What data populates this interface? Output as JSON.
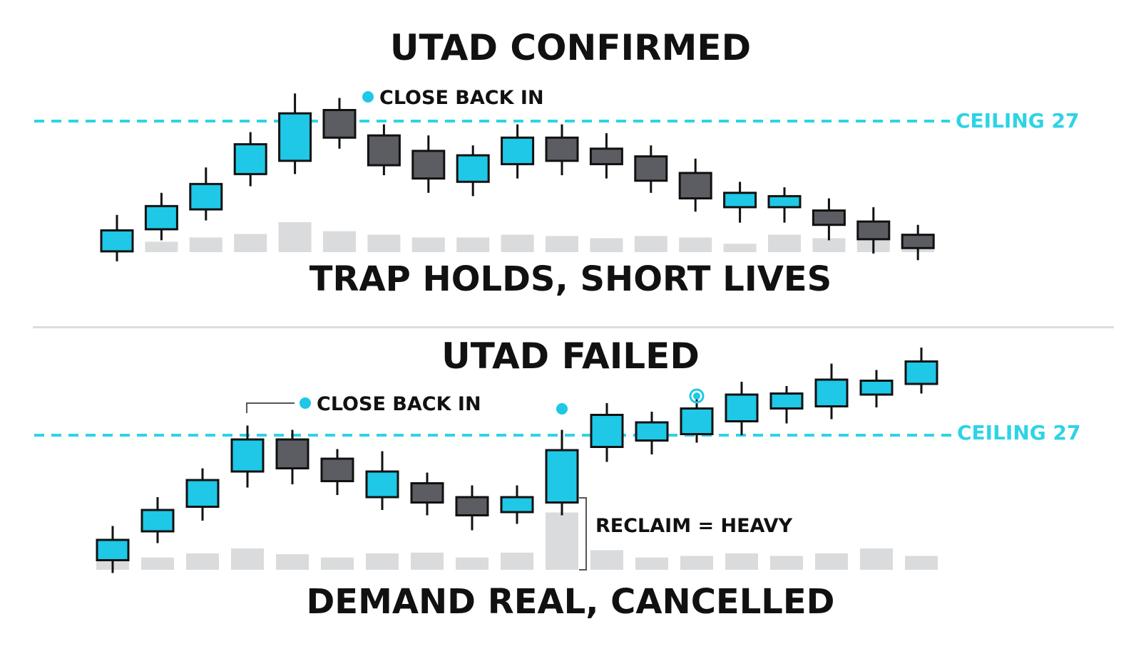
{
  "colors": {
    "bull": "#1ec8e6",
    "bear": "#5c5d63",
    "outline": "#111111",
    "volume": "#dadbdd",
    "ceiling": "#2ed3e6",
    "accent_dot": "#1ec8e6"
  },
  "chart_data": [
    {
      "type": "candlestick",
      "title": "UTAD CONFIRMED",
      "caption": "TRAP HOLDS, SHORT LIVES",
      "ceiling": {
        "label": "CEILING 27",
        "value": 27
      },
      "annotations": [
        {
          "text": "CLOSE BACK IN",
          "at_candle": 5
        }
      ],
      "ylim": [
        10,
        31
      ],
      "candles": [
        {
          "open": 15.2,
          "close": 17.1,
          "high": 18.5,
          "low": 14.3,
          "volume": 1.5
        },
        {
          "open": 17.2,
          "close": 19.3,
          "high": 20.5,
          "low": 16.2,
          "volume": 1.5
        },
        {
          "open": 19.0,
          "close": 21.3,
          "high": 22.8,
          "low": 18.0,
          "volume": 2.1
        },
        {
          "open": 22.2,
          "close": 24.9,
          "high": 26.0,
          "low": 21.1,
          "volume": 2.6
        },
        {
          "open": 23.4,
          "close": 27.7,
          "high": 29.5,
          "low": 22.2,
          "volume": 4.3
        },
        {
          "open": 28.0,
          "close": 25.5,
          "high": 29.1,
          "low": 24.5,
          "volume": 3.0
        },
        {
          "open": 25.7,
          "close": 23.0,
          "high": 26.7,
          "low": 22.1,
          "volume": 2.5
        },
        {
          "open": 24.3,
          "close": 21.8,
          "high": 25.7,
          "low": 20.5,
          "volume": 2.1
        },
        {
          "open": 21.5,
          "close": 23.9,
          "high": 24.8,
          "low": 20.2,
          "volume": 2.1
        },
        {
          "open": 23.1,
          "close": 25.5,
          "high": 26.7,
          "low": 21.8,
          "volume": 2.5
        },
        {
          "open": 25.5,
          "close": 23.4,
          "high": 26.7,
          "low": 22.1,
          "volume": 2.3
        },
        {
          "open": 24.5,
          "close": 23.1,
          "high": 25.9,
          "low": 21.8,
          "volume": 2.0
        },
        {
          "open": 23.8,
          "close": 21.6,
          "high": 24.8,
          "low": 20.5,
          "volume": 2.3
        },
        {
          "open": 22.3,
          "close": 20.0,
          "high": 23.6,
          "low": 18.8,
          "volume": 2.1
        },
        {
          "open": 19.2,
          "close": 20.5,
          "high": 21.5,
          "low": 17.8,
          "volume": 1.2
        },
        {
          "open": 19.2,
          "close": 20.2,
          "high": 21.0,
          "low": 17.8,
          "volume": 2.5
        },
        {
          "open": 18.9,
          "close": 17.6,
          "high": 20.0,
          "low": 16.2,
          "volume": 2.0
        },
        {
          "open": 17.9,
          "close": 16.3,
          "high": 19.2,
          "low": 15.0,
          "volume": 2.6
        },
        {
          "open": 16.7,
          "close": 15.5,
          "high": 17.6,
          "low": 14.4,
          "volume": 1.2
        }
      ]
    },
    {
      "type": "candlestick",
      "title": "UTAD FAILED",
      "caption": "DEMAND REAL, CANCELLED",
      "ceiling": {
        "label": "CEILING 27",
        "value": 27
      },
      "annotations": [
        {
          "text": "CLOSE BACK IN",
          "at_candle": 3
        },
        {
          "text": "RECLAIM = HEAVY",
          "at_candle": 10
        }
      ],
      "ylim": [
        10,
        31
      ],
      "candles": [
        {
          "open": 15.3,
          "close": 17.2,
          "high": 18.5,
          "low": 14.1,
          "volume": 1.2
        },
        {
          "open": 18.0,
          "close": 20.0,
          "high": 21.2,
          "low": 16.9,
          "volume": 1.5
        },
        {
          "open": 20.3,
          "close": 22.8,
          "high": 23.9,
          "low": 19.0,
          "volume": 2.0
        },
        {
          "open": 23.6,
          "close": 26.6,
          "high": 27.9,
          "low": 22.1,
          "volume": 2.6
        },
        {
          "open": 26.6,
          "close": 23.9,
          "high": 27.5,
          "low": 22.4,
          "volume": 1.9
        },
        {
          "open": 24.8,
          "close": 22.7,
          "high": 25.7,
          "low": 21.4,
          "volume": 1.5
        },
        {
          "open": 21.2,
          "close": 23.6,
          "high": 25.5,
          "low": 20.0,
          "volume": 2.0
        },
        {
          "open": 22.5,
          "close": 20.7,
          "high": 23.5,
          "low": 19.5,
          "volume": 2.1
        },
        {
          "open": 21.2,
          "close": 19.5,
          "high": 22.3,
          "low": 18.1,
          "volume": 1.5
        },
        {
          "open": 19.8,
          "close": 21.2,
          "high": 22.3,
          "low": 18.7,
          "volume": 2.1
        },
        {
          "open": 20.7,
          "close": 25.6,
          "high": 27.5,
          "low": 19.5,
          "volume": 7.0
        },
        {
          "open": 25.9,
          "close": 28.9,
          "high": 30.0,
          "low": 24.5,
          "volume": 2.4
        },
        {
          "open": 26.5,
          "close": 28.2,
          "high": 29.2,
          "low": 25.2,
          "volume": 1.5
        },
        {
          "open": 27.1,
          "close": 29.5,
          "high": 30.4,
          "low": 26.3,
          "volume": 1.7
        },
        {
          "open": 28.3,
          "close": 30.8,
          "high": 32.0,
          "low": 27.0,
          "volume": 2.0
        },
        {
          "open": 29.5,
          "close": 30.9,
          "high": 31.6,
          "low": 28.1,
          "volume": 1.7
        },
        {
          "open": 29.7,
          "close": 32.2,
          "high": 33.7,
          "low": 28.5,
          "volume": 2.0
        },
        {
          "open": 30.8,
          "close": 32.1,
          "high": 33.1,
          "low": 29.6,
          "volume": 2.6
        },
        {
          "open": 31.8,
          "close": 33.9,
          "high": 35.2,
          "low": 30.9,
          "volume": 1.7
        }
      ]
    }
  ]
}
